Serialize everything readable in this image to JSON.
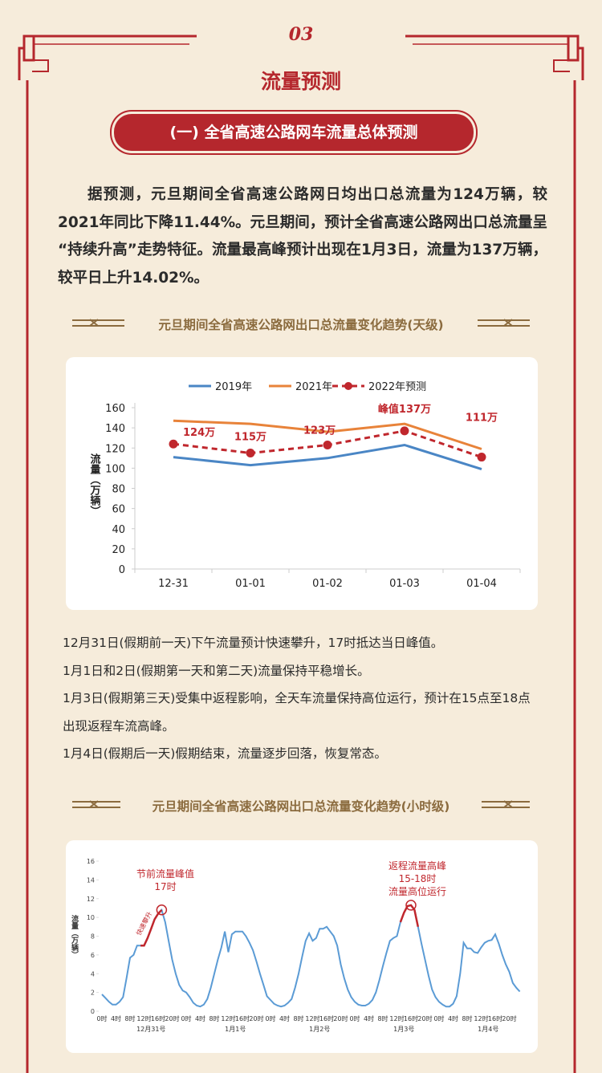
{
  "header": {
    "number": "03",
    "title": "流量预测",
    "subtitle": "(一) 全省高速公路网车流量总体预测"
  },
  "intro": "据预测，元旦期间全省高速公路网日均出口总流量为124万辆，较2021年同比下降11.44%。元旦期间，预计全省高速公路网出口总流量呈“持续升高”走势特征。流量最高峰预计出现在1月3日，流量为137万辆，较平日上升14.02%。",
  "sections": [
    {
      "heading": "元旦期间全省高速公路网出口总流量变化趋势(天级)"
    },
    {
      "heading": "元旦期间全省高速公路网出口总流量变化趋势(小时级)"
    }
  ],
  "notes": [
    "12月31日(假期前一天)下午流量预计快速攀升，17时抵达当日峰值。",
    "1月1日和2日(假期第一天和第二天)流量保持平稳增长。",
    "1月3日(假期第三天)受集中返程影响，全天车流量保持高位运行，预计在15点至18点出现返程车流高峰。",
    "1月4日(假期后一天)假期结束，流量逐步回落，恢复常态。"
  ],
  "chart_data": [
    {
      "type": "line",
      "y_label": "流量（万辆）",
      "categories": [
        "12-31",
        "01-01",
        "01-02",
        "01-03",
        "01-04"
      ],
      "series": [
        {
          "name": "2019年",
          "color": "#4a86c5",
          "values": [
            111,
            103,
            110,
            123,
            99
          ]
        },
        {
          "name": "2021年",
          "color": "#e8833a",
          "values": [
            147,
            144,
            136,
            144,
            119
          ]
        },
        {
          "name": "2022年预测",
          "color": "#c0272d",
          "dashed": true,
          "markers": true,
          "values": [
            124,
            115,
            123,
            137,
            111
          ],
          "value_labels": [
            "124万",
            "115万",
            "123万",
            "峰值137万",
            "111万"
          ]
        }
      ],
      "ylim": [
        0,
        160
      ],
      "yticks": [
        0,
        20,
        40,
        60,
        80,
        100,
        120,
        140,
        160
      ],
      "legend": "top"
    },
    {
      "type": "line",
      "y_label": "流量（万辆）",
      "categories": [
        "0时",
        null,
        null,
        null,
        "4时",
        null,
        null,
        null,
        "8时",
        null,
        null,
        null,
        "12时",
        null,
        null,
        null,
        "16时",
        null,
        null,
        null,
        "20时",
        null,
        null,
        null,
        "0时",
        null,
        null,
        null,
        "4时",
        null,
        null,
        null,
        "8时",
        null,
        null,
        null,
        "12时",
        null,
        null,
        null,
        "16时",
        null,
        null,
        null,
        "20时",
        null,
        null,
        null,
        "0时",
        null,
        null,
        null,
        "4时",
        null,
        null,
        null,
        "8时",
        null,
        null,
        null,
        "12时",
        null,
        null,
        null,
        "16时",
        null,
        null,
        null,
        "20时",
        null,
        null,
        null,
        "0时",
        null,
        null,
        null,
        "4时",
        null,
        null,
        null,
        "8时",
        null,
        null,
        null,
        "12时",
        null,
        null,
        null,
        "16时",
        null,
        null,
        null,
        "20时",
        null,
        null,
        null,
        "0时",
        null,
        null,
        null,
        "4时",
        null,
        null,
        null,
        "8时",
        null,
        null,
        null,
        "12时",
        null,
        null,
        null,
        "16时",
        null,
        null,
        null,
        "20时",
        null,
        null,
        null
      ],
      "day_labels": [
        "12月31号",
        "1月1号",
        "1月2号",
        "1月3号",
        "1月4号"
      ],
      "series": [
        {
          "color": "#5b9bd5",
          "values": [
            1.8,
            1.4,
            1.0,
            0.7,
            0.7,
            1.0,
            1.5,
            3.5,
            5.7,
            6.0,
            7.0,
            7.0,
            7.0,
            7.8,
            8.8,
            9.8,
            10.4,
            10.8,
            9.5,
            7.5,
            5.5,
            4.0,
            2.8,
            2.2,
            2.0,
            1.5,
            0.9,
            0.6,
            0.5,
            0.7,
            1.3,
            2.5,
            4.0,
            5.5,
            6.8,
            8.5,
            6.3,
            8.2,
            8.5,
            8.5,
            8.5,
            8.0,
            7.3,
            6.5,
            5.3,
            4.0,
            2.8,
            1.6,
            1.2,
            0.8,
            0.6,
            0.5,
            0.6,
            0.9,
            1.3,
            2.5,
            4.0,
            5.8,
            7.5,
            8.3,
            7.5,
            7.8,
            8.8,
            8.8,
            9.0,
            8.5,
            8.0,
            7.0,
            5.0,
            3.5,
            2.3,
            1.5,
            1.0,
            0.7,
            0.6,
            0.6,
            0.8,
            1.2,
            2.0,
            3.3,
            4.8,
            6.2,
            7.5,
            7.8,
            8.0,
            9.5,
            10.5,
            11.2,
            11.3,
            10.8,
            9.0,
            7.2,
            5.5,
            3.8,
            2.3,
            1.5,
            1.0,
            0.7,
            0.5,
            0.5,
            0.8,
            1.6,
            4.0,
            7.3,
            6.7,
            6.7,
            6.3,
            6.2,
            6.8,
            7.3,
            7.5,
            7.6,
            8.2,
            7.2,
            6.0,
            5.0,
            4.2,
            3.0,
            2.5,
            2.1
          ]
        }
      ],
      "highlight_color": "#c0272d",
      "highlight_ranges": [
        [
          11,
          17
        ],
        [
          85,
          90
        ]
      ],
      "circled": [
        17,
        88
      ],
      "annotations": [
        "节前流量峰值",
        "17时",
        "快速攀升",
        "返程流量高峰",
        "15-18时",
        "流量高位运行"
      ],
      "ylim": [
        0,
        16
      ],
      "yticks": [
        0,
        2,
        4,
        6,
        8,
        10,
        12,
        14,
        16
      ]
    }
  ]
}
